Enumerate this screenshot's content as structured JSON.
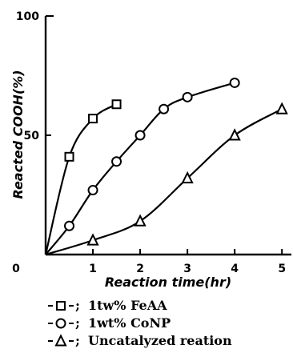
{
  "chart_data": {
    "type": "line",
    "xlabel": "Reaction time(hr)",
    "ylabel": "Reacted COOH(%)",
    "xlim": [
      0,
      5.2
    ],
    "ylim": [
      0,
      100
    ],
    "x_ticks": [
      "0",
      "1",
      "2",
      "3",
      "4",
      "5"
    ],
    "y_ticks": [
      "100",
      "50"
    ],
    "grid": false,
    "legend_position": "bottom",
    "series": [
      {
        "name": "1tw% FeAA",
        "marker": "square",
        "x": [
          0.5,
          1.0,
          1.5
        ],
        "y": [
          41,
          57,
          63
        ]
      },
      {
        "name": "1wt% CoNP",
        "marker": "circle",
        "x": [
          0.5,
          1.0,
          1.5,
          2.0,
          2.5,
          3.0,
          4.0
        ],
        "y": [
          12,
          27,
          39,
          50,
          61,
          66,
          72
        ]
      },
      {
        "name": "Uncatalyzed reation",
        "marker": "triangle",
        "x": [
          1.0,
          2.0,
          3.0,
          4.0,
          5.0
        ],
        "y": [
          6,
          14,
          32,
          50,
          61
        ]
      }
    ],
    "legend": [
      {
        "prefix": "-",
        "suffix": "-;",
        "label": "1tw% FeAA",
        "marker": "square"
      },
      {
        "prefix": "-",
        "suffix": "-;",
        "label": "1wt% CoNP",
        "marker": "circle"
      },
      {
        "prefix": "-",
        "suffix": "-;",
        "label": "Uncatalyzed reation",
        "marker": "triangle"
      }
    ]
  }
}
